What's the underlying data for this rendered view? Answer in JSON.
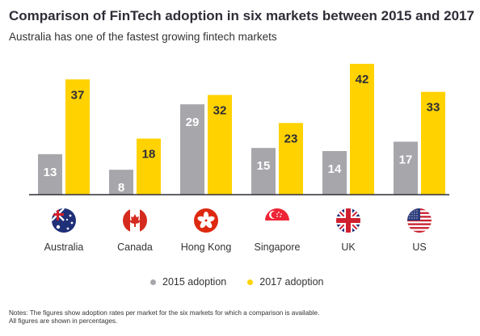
{
  "title": "Comparison of FinTech adoption in six markets between 2015 and 2017",
  "subtitle": "Australia has one of the fastest growing fintech markets",
  "colors": {
    "series_2015": "#a7a7ab",
    "series_2017": "#ffd200",
    "bar_label": "#2e2e38",
    "baseline": "#2e2e38"
  },
  "chart_data": {
    "type": "bar",
    "categories": [
      "Australia",
      "Canada",
      "Hong Kong",
      "Singapore",
      "UK",
      "US"
    ],
    "flags": [
      "australia-flag-icon",
      "canada-flag-icon",
      "hong-kong-flag-icon",
      "singapore-flag-icon",
      "uk-flag-icon",
      "us-flag-icon"
    ],
    "series": [
      {
        "name": "2015 adoption",
        "values": [
          13,
          8,
          29,
          15,
          14,
          17
        ]
      },
      {
        "name": "2017 adoption",
        "values": [
          37,
          18,
          32,
          23,
          42,
          33
        ]
      }
    ],
    "ylim": [
      0,
      42
    ],
    "grid": false,
    "legend_placement": "bottom-center",
    "data_labels": true,
    "title": "Comparison of FinTech adoption in six markets between 2015 and 2017",
    "subtitle": "Australia has one of the fastest growing fintech markets",
    "xlabel": "",
    "ylabel": ""
  },
  "notes": [
    "Notes: The figures show adoption rates per market for the six markets for which a comparison is available.",
    "All figures are shown in percentages."
  ]
}
